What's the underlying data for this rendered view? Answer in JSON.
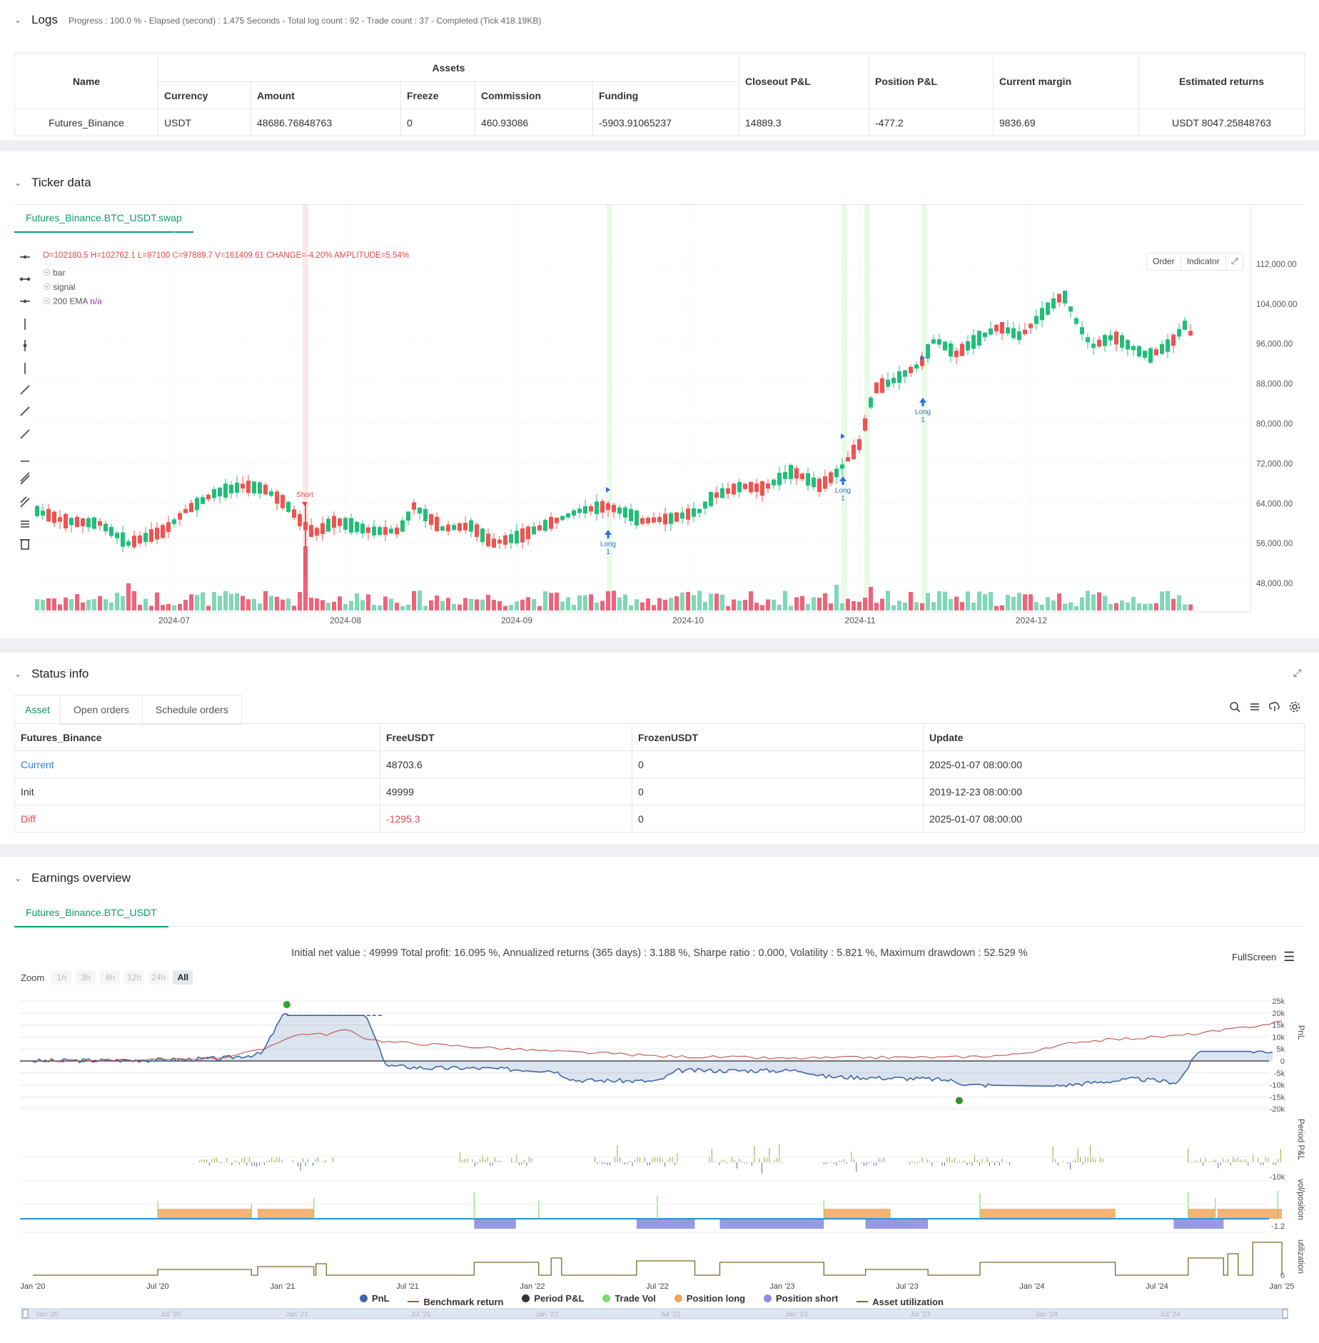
{
  "logs": {
    "title": "Logs",
    "progress": "Progress : 100.0 % - Elapsed (second) : 1.475  Seconds - Total log count : 92 - Trade count : 37 - Completed (Tick 418.19KB)",
    "table": {
      "name_header": "Name",
      "assets_header": "Assets",
      "sub_headers": [
        "Currency",
        "Amount",
        "Freeze",
        "Commission",
        "Funding"
      ],
      "right_headers": [
        "Closeout P&L",
        "Position P&L",
        "Current margin",
        "Estimated returns"
      ],
      "row": [
        "Futures_Binance",
        "USDT",
        "48686.76848763",
        "0",
        "460.93086",
        "-5903.91065237",
        "14889.3",
        "-477.2",
        "9836.69",
        "USDT 8047.25848763"
      ]
    }
  },
  "ticker": {
    "title": "Ticker data",
    "tab": "Futures_Binance.BTC_USDT.swap",
    "ohlc": {
      "o": "O=102180.5",
      "h": "H=102762.1",
      "l": "L=97100",
      "c": "C=97889.7",
      "v": "V=161409.61",
      "change": "CHANGE=-4.20%",
      "amplitude": "AMPLITUDE=5.54%"
    },
    "series_labels": [
      "bar",
      "signal",
      "200 EMA"
    ],
    "ema_value": "n/a",
    "buttons": [
      "Order",
      "Indicator"
    ],
    "price_ticks": [
      "112,000.00",
      "104,000.00",
      "96,000.00",
      "88,000.00",
      "80,000.00",
      "72,000.00",
      "64,000.00",
      "56,000.00",
      "48,000.00"
    ],
    "date_ticks": [
      "2024-07",
      "2024-08",
      "2024-09",
      "2024-10",
      "2024-11",
      "2024-12"
    ],
    "markers": [
      {
        "label": "Short",
        "sub": ""
      },
      {
        "label": "Long",
        "sub": "1"
      },
      {
        "label": "Long",
        "sub": "1"
      },
      {
        "label": "Long",
        "sub": "1"
      }
    ],
    "colors": {
      "up": "#26a69a",
      "up_bright": "#1fbf7a",
      "down": "#ef5350",
      "vol_up": "#7fd8b6",
      "vol_down": "#f0627a"
    }
  },
  "status": {
    "title": "Status info",
    "tabs": [
      "Asset",
      "Open orders",
      "Schedule orders"
    ],
    "headers": [
      "Futures_Binance",
      "FreeUSDT",
      "FrozenUSDT",
      "Update"
    ],
    "rows": [
      [
        "Current",
        "48703.6",
        "0",
        "2025-01-07 08:00:00"
      ],
      [
        "Init",
        "49999",
        "0",
        "2019-12-23 08:00:00"
      ],
      [
        "Diff",
        "-1295.3",
        "0",
        "2025-01-07 08:00:00"
      ]
    ]
  },
  "earnings": {
    "title": "Earnings overview",
    "tab": "Futures_Binance.BTC_USDT",
    "summary": "Initial net value : 49999  Total profit: 16.095 %, Annualized returns (365 days) : 3.188 %, Sharpe ratio : 0.000, Volatility : 5.821 %, Maximum drawdown : 52.529 %",
    "fullscreen": "FullScreen",
    "zoom_label": "Zoom",
    "zoom_buttons": [
      "1h",
      "3h",
      "8h",
      "12h",
      "24h",
      "All"
    ],
    "pnl_ticks": [
      "25k",
      "20k",
      "15k",
      "10k",
      "5k",
      "0",
      "-5k",
      "-10k",
      "-15k",
      "-20k"
    ],
    "period_tick": "-10k",
    "vol_tick": "-1.2",
    "util_tick": "0",
    "axis_titles": [
      "PnL",
      "Period P&L",
      "vol/position",
      "utilization"
    ],
    "date_ticks": [
      "Jan '20",
      "Jul '20",
      "Jan '21",
      "Jul '21",
      "Jan '22",
      "Jul '22",
      "Jan '23",
      "Jul '23",
      "Jan '24",
      "Jul '24",
      "Jan '25"
    ],
    "legend": [
      {
        "name": "PnL",
        "color": "#3f67a6"
      },
      {
        "name": "Benchmark return",
        "color": "#c0504d"
      },
      {
        "name": "Period P&L",
        "color": "#333333"
      },
      {
        "name": "Trade Vol",
        "color": "#7ddc6e"
      },
      {
        "name": "Position long",
        "color": "#f2a65a"
      },
      {
        "name": "Position short",
        "color": "#8c8fe0"
      },
      {
        "name": "Asset utilization",
        "color": "#7a6a2a"
      }
    ],
    "navigator_ticks": [
      "Jan '20",
      "Jul '20",
      "Jan '21",
      "Jul '21",
      "Jan '22",
      "Jul '22",
      "Jan '23",
      "Jul '23",
      "Jan '24",
      "Jul '24"
    ]
  }
}
